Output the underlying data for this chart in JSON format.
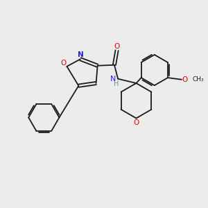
{
  "background_color": "#ececec",
  "bond_color": "#1a1a1a",
  "atom_colors": {
    "O": "#e00000",
    "N": "#2020e0",
    "H": "#3aacac"
  },
  "figsize": [
    3.0,
    3.0
  ],
  "dpi": 100
}
